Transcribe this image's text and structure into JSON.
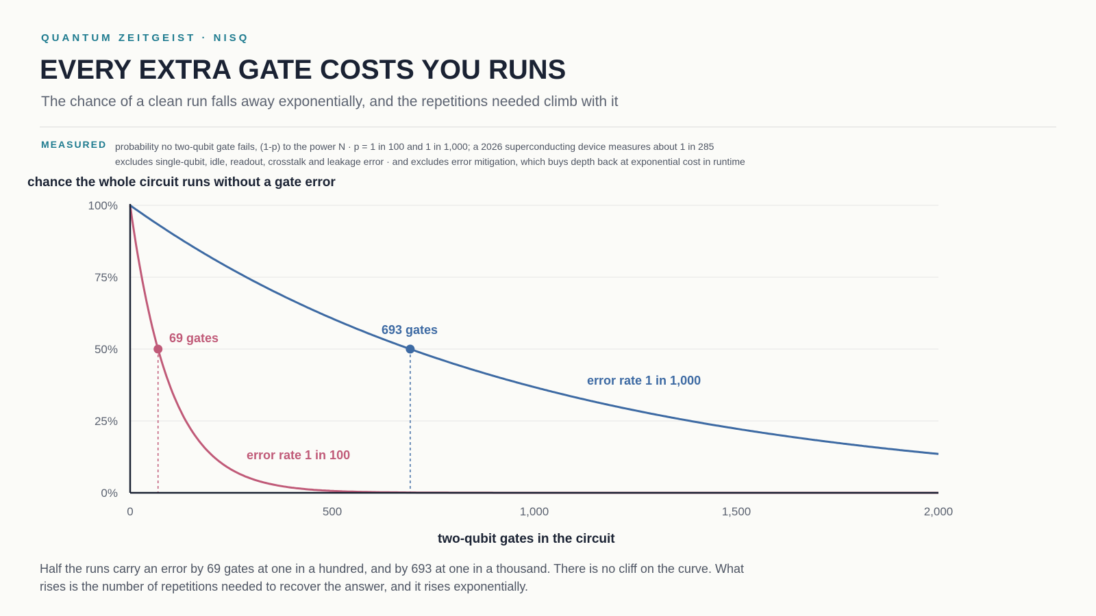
{
  "header": {
    "kicker": "QUANTUM ZEITGEIST · NISQ",
    "title": "EVERY EXTRA GATE COSTS YOU RUNS",
    "subtitle": "The chance of a clean run falls away exponentially, and the repetitions needed climb with it"
  },
  "measured": {
    "tag": "MEASURED",
    "line1": "probability no two-qubit gate fails, (1-p) to the power N · p = 1 in 100 and 1 in 1,000; a 2026 superconducting device measures about 1 in 285",
    "line2": "excludes single-qubit, idle, readout, crosstalk and leakage error · and excludes error mitigation, which buys depth back at exponential cost in runtime"
  },
  "note": "Half the runs carry an error by 69 gates at one in a hundred, and by 693 at one in a thousand. There is no cliff on the curve. What rises is the number of repetitions needed to recover the answer, and it rises exponentially.",
  "chart_data": {
    "type": "line",
    "ylabel": "chance the whole circuit runs without a gate error",
    "xlabel": "two-qubit gates in the circuit",
    "xlim": [
      0,
      2000
    ],
    "ylim": [
      0,
      1
    ],
    "x_ticks": [
      0,
      500,
      1000,
      1500,
      2000
    ],
    "x_tick_labels": [
      "0",
      "500",
      "1,000",
      "1,500",
      "2,000"
    ],
    "y_ticks": [
      0,
      0.25,
      0.5,
      0.75,
      1
    ],
    "y_tick_labels": [
      "0%",
      "25%",
      "50%",
      "75%",
      "100%"
    ],
    "grid": "horizontal",
    "series": [
      {
        "name": "error rate 1 in 100",
        "p": 0.01,
        "color": "#c05a78",
        "x": [
          0,
          25,
          50,
          69,
          100,
          150,
          200,
          250,
          300,
          350,
          400,
          450,
          500,
          600,
          700,
          800,
          1000,
          1500,
          2000
        ],
        "y": [
          1,
          0.778,
          0.605,
          0.5,
          0.366,
          0.221,
          0.134,
          0.081,
          0.049,
          0.03,
          0.018,
          0.011,
          0.0066,
          0.0024,
          0.0009,
          0.0003,
          4e-05,
          0,
          0
        ],
        "half_point": {
          "x": 69,
          "y": 0.5,
          "label": "69 gates"
        }
      },
      {
        "name": "error rate 1 in 1,000",
        "p": 0.001,
        "color": "#3d6aa3",
        "x": [
          0,
          100,
          200,
          300,
          400,
          500,
          600,
          693,
          800,
          900,
          1000,
          1100,
          1200,
          1300,
          1400,
          1500,
          1600,
          1700,
          1800,
          1900,
          2000
        ],
        "y": [
          1,
          0.905,
          0.819,
          0.741,
          0.67,
          0.606,
          0.549,
          0.5,
          0.449,
          0.406,
          0.368,
          0.333,
          0.301,
          0.272,
          0.246,
          0.223,
          0.202,
          0.183,
          0.165,
          0.15,
          0.135
        ],
        "half_point": {
          "x": 693,
          "y": 0.5,
          "label": "693 gates"
        }
      }
    ]
  }
}
